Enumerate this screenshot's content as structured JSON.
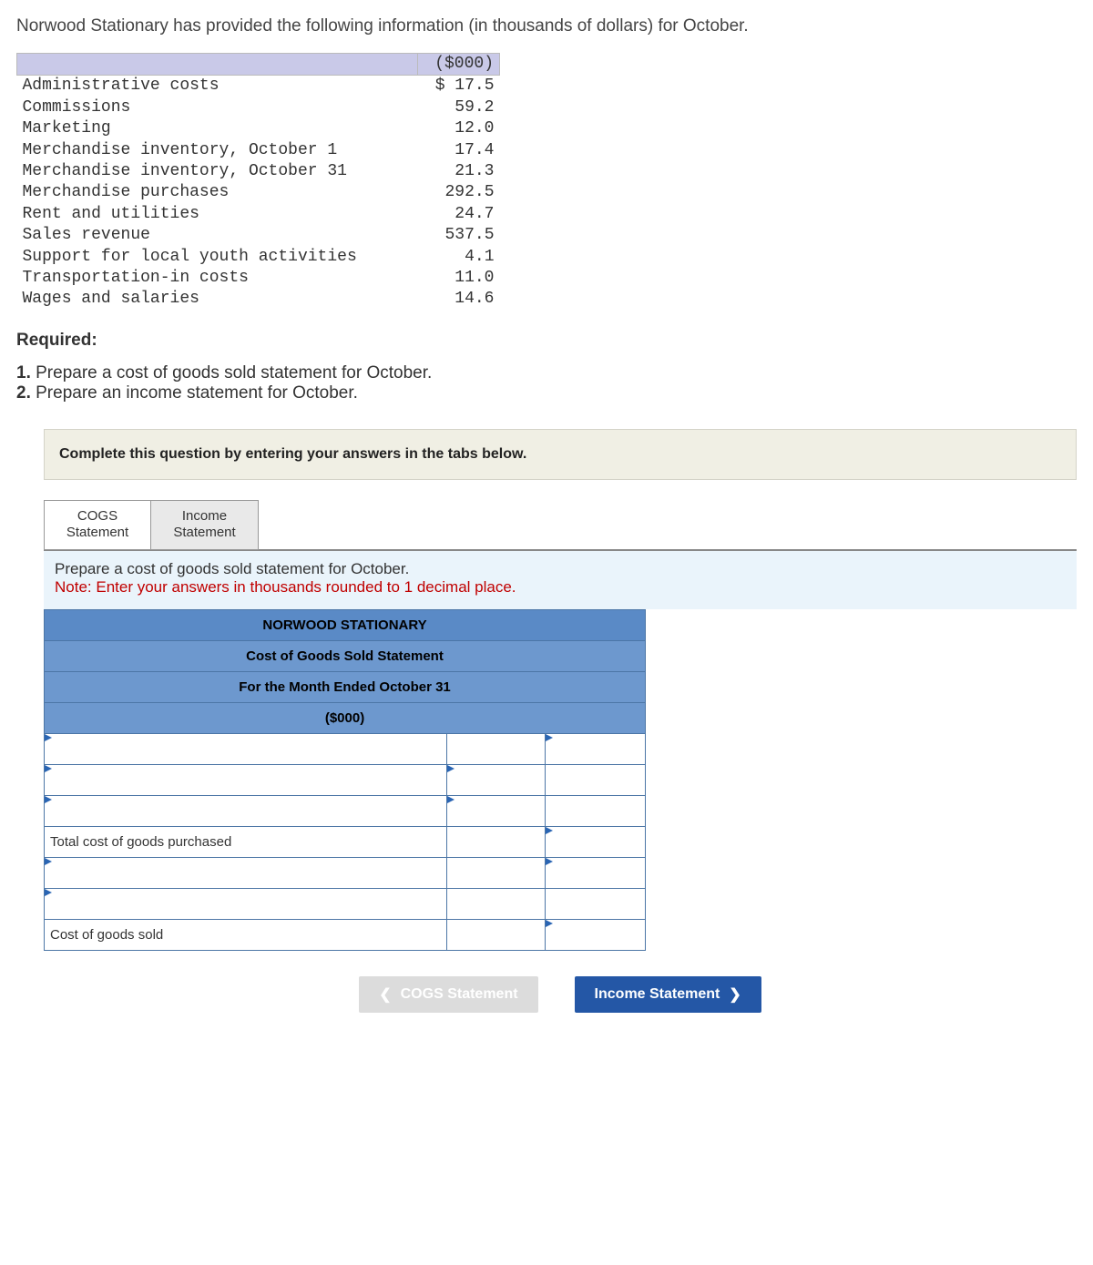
{
  "intro": "Norwood Stationary has provided the following information (in thousands of dollars) for October.",
  "data_table": {
    "unit_header": "($000)",
    "rows": [
      {
        "label": "Administrative costs",
        "value": "$ 17.5"
      },
      {
        "label": "Commissions",
        "value": "59.2"
      },
      {
        "label": "Marketing",
        "value": "12.0"
      },
      {
        "label": "Merchandise inventory, October 1",
        "value": "17.4"
      },
      {
        "label": "Merchandise inventory, October 31",
        "value": "21.3"
      },
      {
        "label": "Merchandise purchases",
        "value": "292.5"
      },
      {
        "label": "Rent and utilities",
        "value": "24.7"
      },
      {
        "label": "Sales revenue",
        "value": "537.5"
      },
      {
        "label": "Support for local youth activities",
        "value": "4.1"
      },
      {
        "label": "Transportation-in costs",
        "value": "11.0"
      },
      {
        "label": "Wages and salaries",
        "value": "14.6"
      }
    ]
  },
  "required_heading": "Required:",
  "requirements": [
    {
      "num": "1.",
      "text": " Prepare a cost of goods sold statement for October."
    },
    {
      "num": "2.",
      "text": " Prepare an income statement for October."
    }
  ],
  "banner": "Complete this question by entering your answers in the tabs below.",
  "tabs": {
    "cogs": "COGS Statement",
    "income": "Income Statement"
  },
  "instructions": {
    "line1": "Prepare a cost of goods sold statement for October.",
    "note": "Note: Enter your answers in thousands rounded to 1 decimal place."
  },
  "cogs_header": {
    "company": "NORWOOD STATIONARY",
    "title": "Cost of Goods Sold Statement",
    "period": "For the Month Ended October 31",
    "unit": "($000)"
  },
  "cogs_rows": {
    "total_purchased": "Total cost of goods purchased",
    "cogs": "Cost of goods sold"
  },
  "nav": {
    "prev": "COGS Statement",
    "next": "Income Statement"
  },
  "colors": {
    "header_bg": "#5a8ac6",
    "border": "#4c76a6",
    "banner_bg": "#f0efe4",
    "instr_bg": "#eaf4fb",
    "note_color": "#c00000",
    "nav_primary": "#2457a6"
  }
}
